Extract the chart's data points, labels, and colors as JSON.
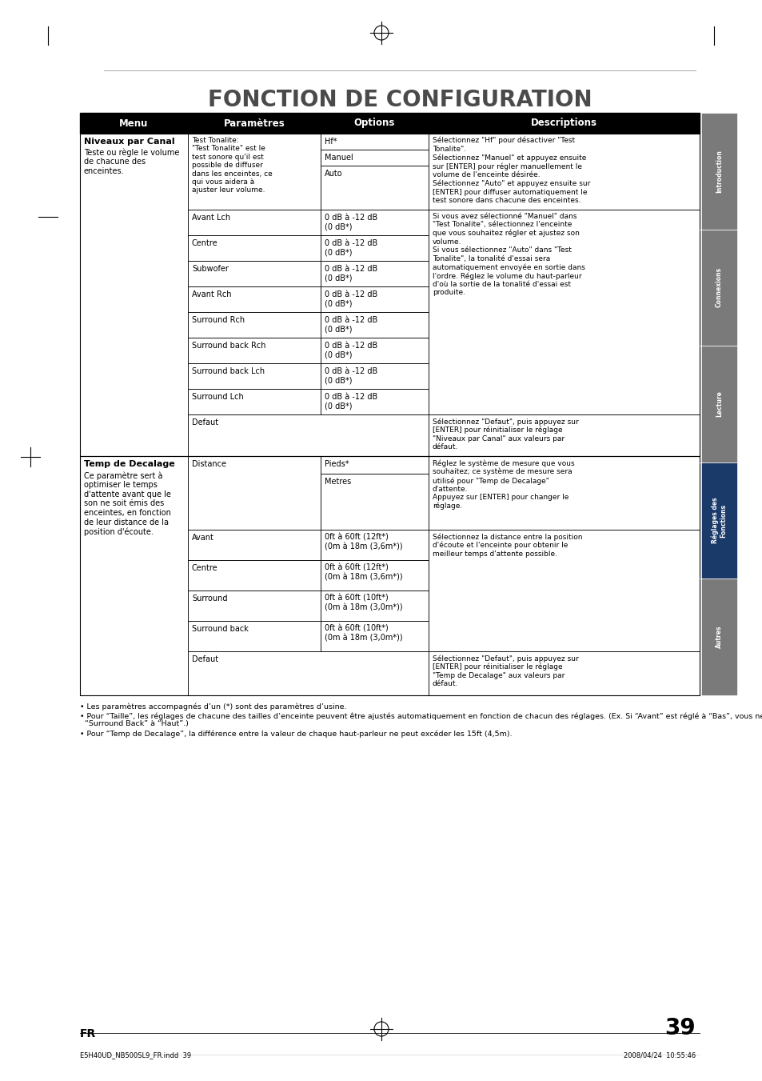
{
  "title": "FONCTION DE CONFIGURATION",
  "page_number": "39",
  "language": "FR",
  "header_cols": [
    "Menu",
    "Paramètres",
    "Options",
    "Descriptions"
  ],
  "footer_notes": [
    "• Les paramètres accompagnés d’un (*) sont des paramètres d’usine.",
    "• Pour “Taille”, les réglages de chacune des tailles d’enceinte peuvent être ajustés automatiquement en fonction de chacun des réglages. (Ex. Si “Avant” est réglé à “Bas”, vous ne pouvez pas régler “Centre”, “Surround”, et\n  “Surround Back” à “Haut”.)",
    "• Pour “Temp de Decalage”, la différence entre la valeur de chaque haut-parleur ne peut excéder les 15ft (4,5m)."
  ],
  "sidebar_labels": [
    "Introduction",
    "Connexions",
    "Lecture",
    "Réglages des\nFonctions",
    "Autres"
  ],
  "sidebar_active": 3,
  "bg_color": "#ffffff",
  "header_bg": "#000000",
  "header_fg": "#ffffff",
  "title_color": "#4a4a4a",
  "border_color": "#000000"
}
